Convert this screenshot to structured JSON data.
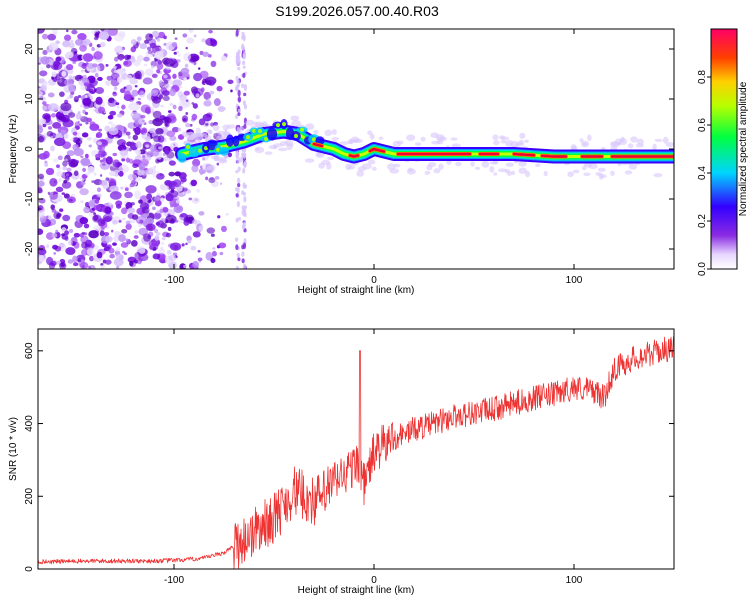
{
  "title": "S199.2026.057.00.40.R03",
  "chart_data": [
    {
      "type": "heatmap",
      "xlabel": "Height of straight line (km)",
      "ylabel": "Frequency (Hz)",
      "xlim": [
        -168,
        150
      ],
      "ylim": [
        -24,
        24
      ],
      "xticks": [
        -100,
        0,
        100
      ],
      "yticks": [
        -20,
        -10,
        0,
        10,
        20
      ],
      "colorbar": {
        "label": "Normalized spectral amplitude",
        "range": [
          0.0,
          1.0
        ],
        "ticks": [
          "0.0",
          "0.2",
          "0.4",
          "0.6",
          "0.8"
        ],
        "tick_values": [
          0.0,
          0.2,
          0.4,
          0.6,
          0.8
        ]
      },
      "ridge": {
        "x": [
          -96,
          -85,
          -75,
          -65,
          -55,
          -45,
          -38,
          -30,
          -20,
          -15,
          -10,
          -5,
          0,
          10,
          30,
          50,
          70,
          90,
          110,
          130,
          150
        ],
        "y": [
          -1,
          0,
          0.5,
          1.5,
          3,
          3.5,
          3,
          1,
          0,
          -1,
          -1.5,
          -1,
          0,
          -1,
          -1,
          -1,
          -1,
          -1.5,
          -1.5,
          -1.5,
          -1.5
        ]
      },
      "noise_region": [
        -168,
        -68
      ]
    },
    {
      "type": "line",
      "xlabel": "Height of straight line (km)",
      "ylabel": "SNR (10 * v/v)",
      "xlim": [
        -168,
        150
      ],
      "ylim": [
        0,
        660
      ],
      "xticks": [
        -100,
        0,
        100
      ],
      "yticks": [
        0,
        200,
        400,
        600
      ],
      "color": "#ee3333",
      "series": [
        {
          "name": "SNR",
          "x": [
            -168,
            -140,
            -110,
            -95,
            -85,
            -75,
            -65,
            -58,
            -50,
            -45,
            -40,
            -35,
            -30,
            -25,
            -20,
            -15,
            -10,
            -8,
            -5,
            0,
            5,
            10,
            20,
            30,
            40,
            50,
            60,
            70,
            80,
            90,
            100,
            110,
            115,
            120,
            130,
            140,
            150
          ],
          "y": [
            20,
            22,
            22,
            25,
            30,
            45,
            80,
            110,
            140,
            175,
            215,
            200,
            185,
            205,
            240,
            260,
            280,
            300,
            230,
            320,
            340,
            360,
            385,
            400,
            420,
            430,
            440,
            455,
            470,
            480,
            500,
            490,
            470,
            550,
            580,
            595,
            610
          ]
        }
      ],
      "annotation_spike": {
        "x": -7,
        "y": 600
      }
    }
  ]
}
